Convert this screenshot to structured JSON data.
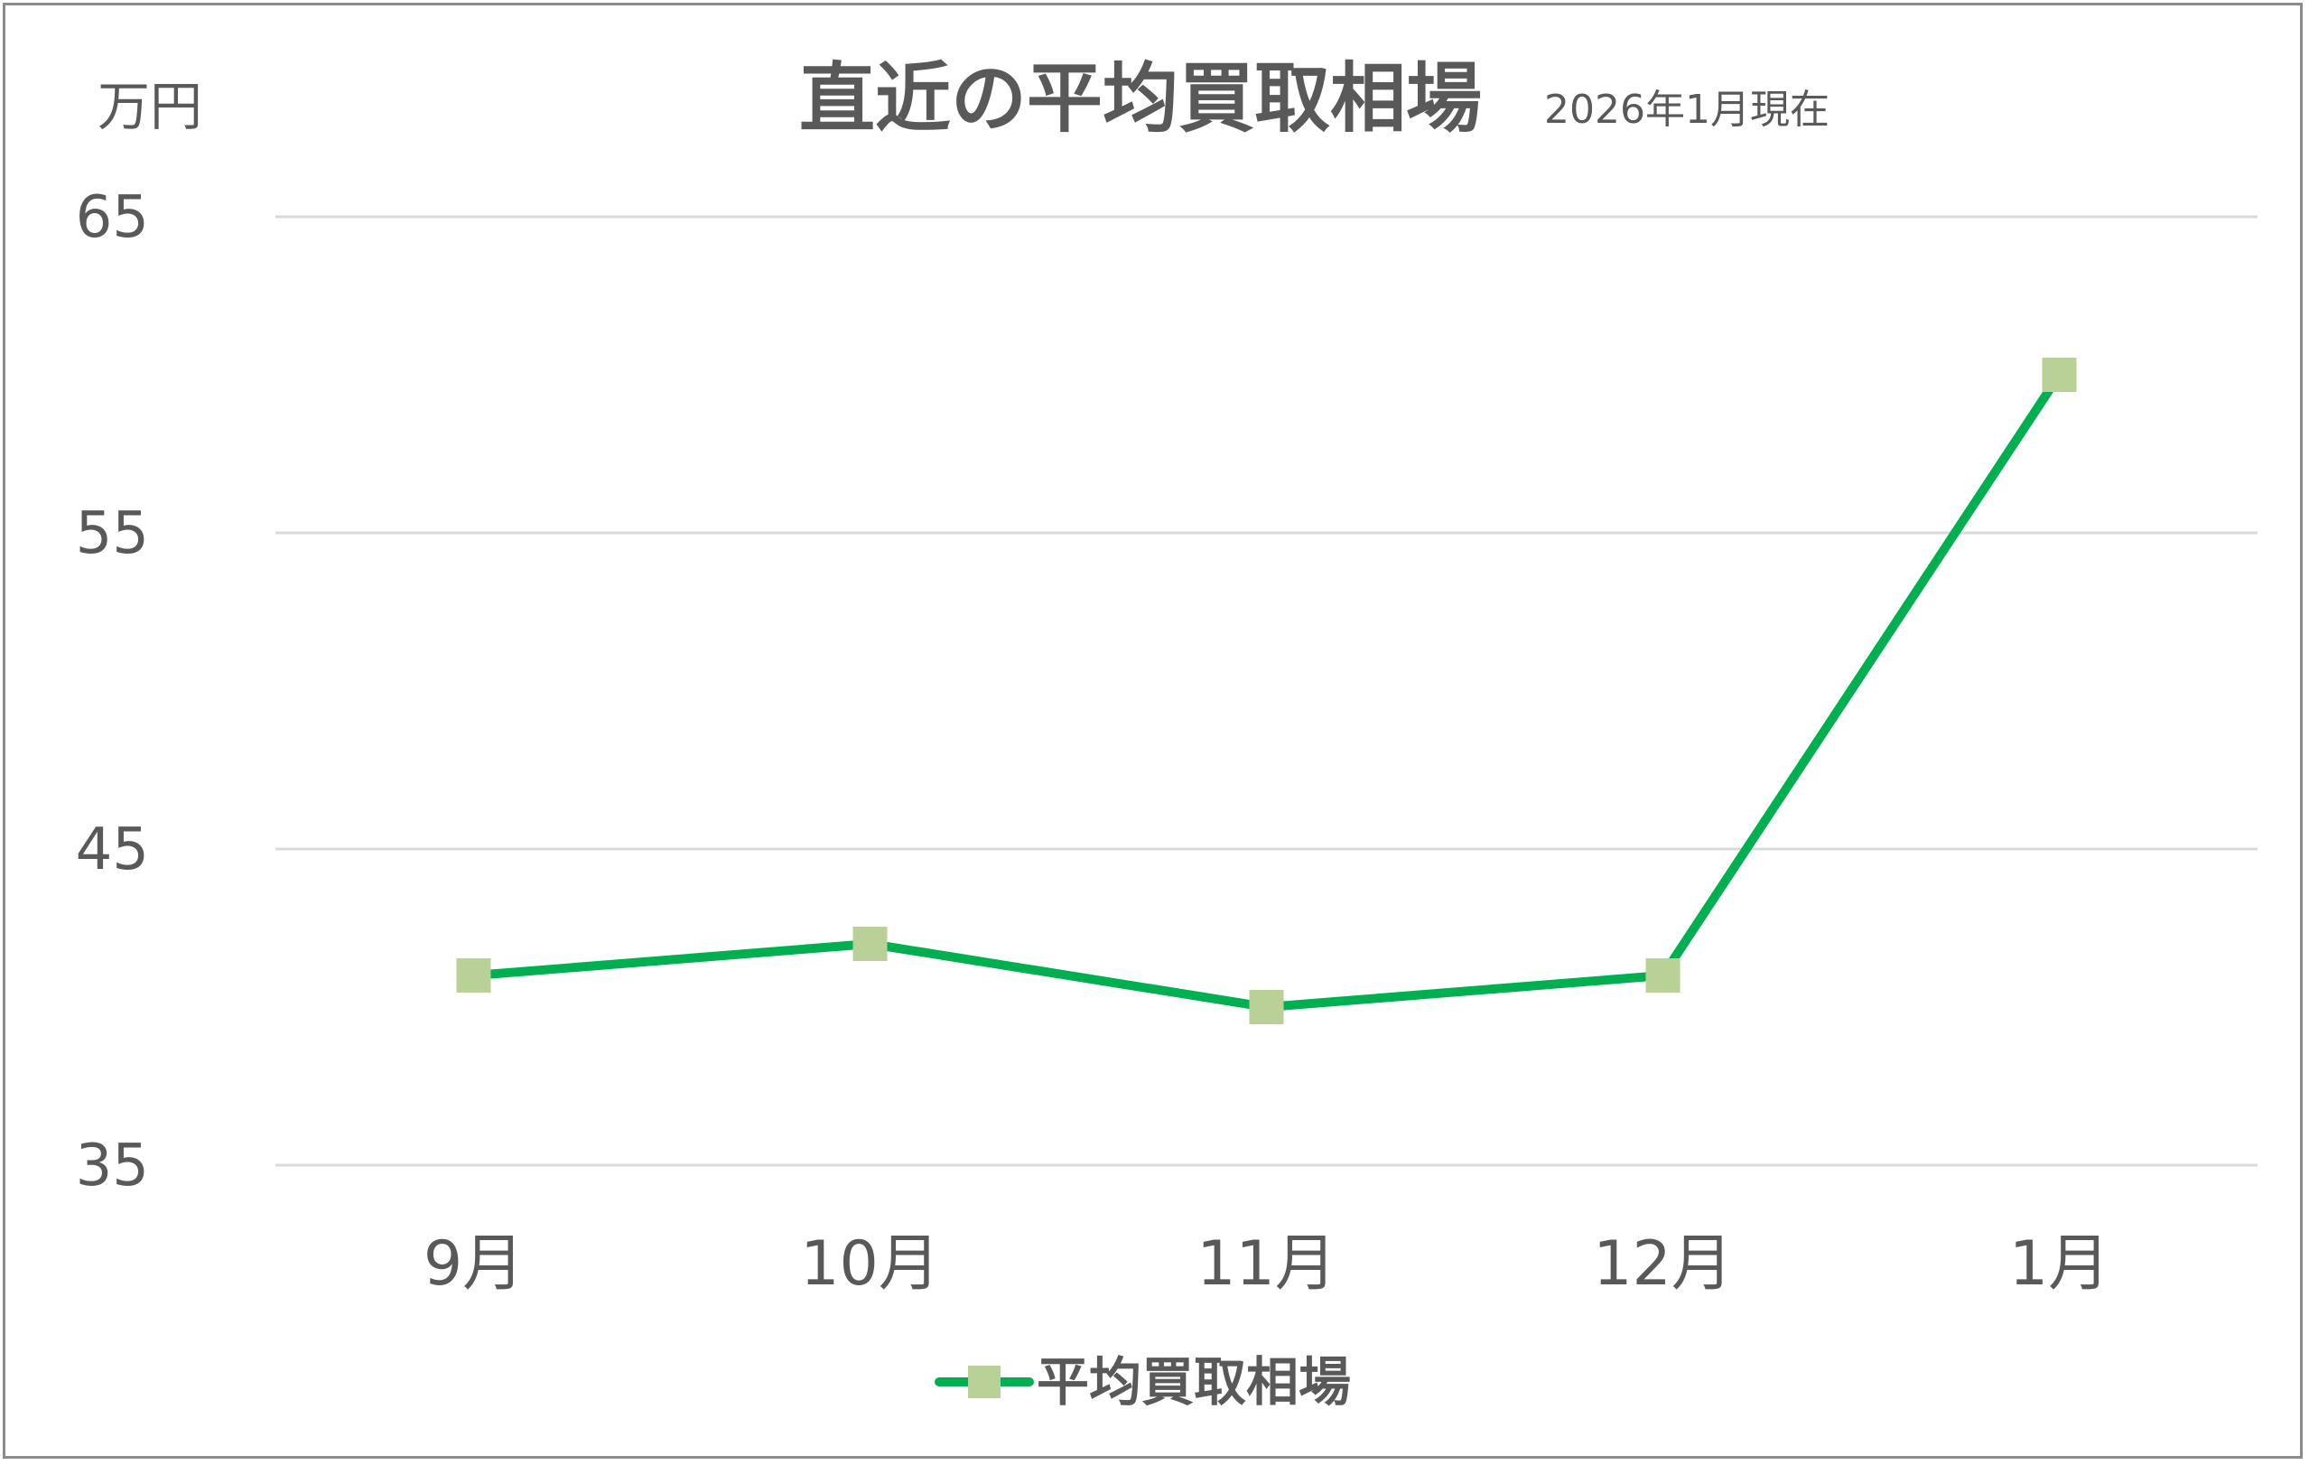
{
  "chart_data": {
    "type": "line",
    "title": "直近の平均買取相場",
    "subtitle": "2026年1月現在",
    "ylabel": "万円",
    "categories": [
      "9月",
      "10月",
      "11月",
      "12月",
      "1月"
    ],
    "series": [
      {
        "name": "平均買取相場",
        "values": [
          41,
          42,
          40,
          41,
          60
        ]
      }
    ],
    "ylim": [
      35,
      65
    ],
    "yticks": [
      35,
      45,
      55,
      65
    ],
    "grid": true,
    "legend": "bottom",
    "colors": {
      "line": "#00b050",
      "marker": "#b9d196",
      "grid": "#d9d9d9",
      "text": "#595959",
      "border": "#8c8c8c"
    }
  }
}
